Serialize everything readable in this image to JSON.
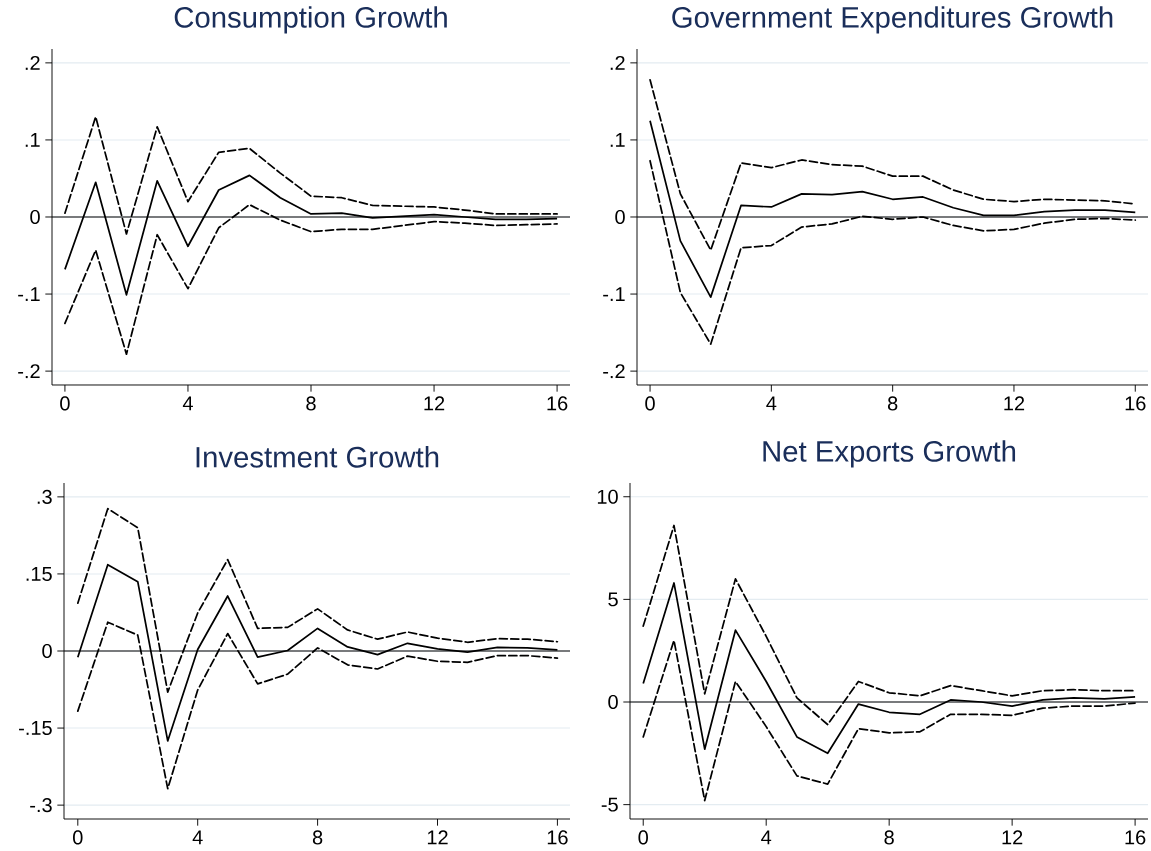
{
  "chart_data": [
    {
      "type": "line",
      "title": "Consumption Growth",
      "x": [
        0,
        1,
        2,
        3,
        4,
        5,
        6,
        7,
        8,
        9,
        10,
        11,
        12,
        13,
        14,
        15,
        16
      ],
      "xlim": [
        -0.42,
        16.42
      ],
      "ylim": [
        -0.218,
        0.218
      ],
      "xticks": [
        0,
        4,
        8,
        12,
        16
      ],
      "yticks": [
        {
          "value": -0.2,
          "label": "-.2"
        },
        {
          "value": -0.1,
          "label": "-.1"
        },
        0,
        {
          "value": 0.1,
          "label": ".1"
        },
        {
          "value": 0.2,
          "label": ".2"
        }
      ],
      "grid": "y",
      "ref_lines": [
        {
          "axis": "y",
          "value": 0,
          "color": "#000000"
        }
      ],
      "series": [
        {
          "color": "#000000",
          "line_style": "solid",
          "values": [
            -0.068,
            0.045,
            -0.101,
            0.047,
            -0.038,
            0.035,
            0.054,
            0.025,
            0.004,
            0.005,
            -0.001,
            0.001,
            0.003,
            0.0,
            -0.003,
            -0.003,
            -0.002
          ]
        },
        {
          "color": "#000000",
          "line_style": "dashed",
          "values": [
            0.005,
            0.13,
            -0.022,
            0.117,
            0.02,
            0.084,
            0.089,
            0.057,
            0.027,
            0.025,
            0.015,
            0.014,
            0.013,
            0.009,
            0.004,
            0.004,
            0.004
          ]
        },
        {
          "color": "#000000",
          "line_style": "dashed",
          "values": [
            -0.138,
            -0.043,
            -0.178,
            -0.023,
            -0.093,
            -0.014,
            0.016,
            -0.004,
            -0.019,
            -0.016,
            -0.016,
            -0.011,
            -0.006,
            -0.008,
            -0.011,
            -0.01,
            -0.009
          ]
        }
      ]
    },
    {
      "type": "line",
      "title": "Government Expenditures Growth",
      "x": [
        0,
        1,
        2,
        3,
        4,
        5,
        6,
        7,
        8,
        9,
        10,
        11,
        12,
        13,
        14,
        15,
        16
      ],
      "xlim": [
        -0.43,
        16.42
      ],
      "ylim": [
        -0.218,
        0.218
      ],
      "xticks": [
        0,
        4,
        8,
        12,
        16
      ],
      "yticks": [
        {
          "value": -0.2,
          "label": "-.2"
        },
        {
          "value": -0.1,
          "label": "-.1"
        },
        0,
        {
          "value": 0.1,
          "label": ".1"
        },
        {
          "value": 0.2,
          "label": ".2"
        }
      ],
      "grid": "y",
      "ref_lines": [
        {
          "axis": "y",
          "value": 0,
          "color": "#000000"
        }
      ],
      "series": [
        {
          "color": "#000000",
          "line_style": "solid",
          "values": [
            0.125,
            -0.031,
            -0.104,
            0.015,
            0.013,
            0.03,
            0.029,
            0.033,
            0.023,
            0.026,
            0.012,
            0.002,
            0.002,
            0.007,
            0.009,
            0.009,
            0.006
          ]
        },
        {
          "color": "#000000",
          "line_style": "dashed",
          "values": [
            0.178,
            0.03,
            -0.043,
            0.07,
            0.064,
            0.074,
            0.068,
            0.066,
            0.053,
            0.053,
            0.035,
            0.023,
            0.02,
            0.023,
            0.022,
            0.021,
            0.017
          ]
        },
        {
          "color": "#000000",
          "line_style": "dashed",
          "values": [
            0.073,
            -0.098,
            -0.165,
            -0.04,
            -0.037,
            -0.013,
            -0.009,
            0.001,
            -0.003,
            0.0,
            -0.011,
            -0.018,
            -0.016,
            -0.008,
            -0.003,
            -0.002,
            -0.004
          ]
        }
      ]
    },
    {
      "type": "line",
      "title": "Investment Growth",
      "x": [
        0,
        1,
        2,
        3,
        4,
        5,
        6,
        7,
        8,
        9,
        10,
        11,
        12,
        13,
        14,
        15,
        16
      ],
      "xlim": [
        -0.46,
        16.42
      ],
      "ylim": [
        -0.327,
        0.327
      ],
      "xticks": [
        0,
        4,
        8,
        12,
        16
      ],
      "yticks": [
        {
          "value": -0.3,
          "label": "-.3"
        },
        {
          "value": -0.15,
          "label": "-.15"
        },
        0,
        {
          "value": 0.15,
          "label": ".15"
        },
        {
          "value": 0.3,
          "label": ".3"
        }
      ],
      "grid": "y",
      "ref_lines": [
        {
          "axis": "y",
          "value": 0,
          "color": "#000000"
        }
      ],
      "series": [
        {
          "color": "#000000",
          "line_style": "solid",
          "values": [
            -0.012,
            0.168,
            0.135,
            -0.175,
            0.003,
            0.107,
            -0.012,
            0.001,
            0.044,
            0.008,
            -0.007,
            0.015,
            0.004,
            -0.002,
            0.007,
            0.006,
            0.002
          ]
        },
        {
          "color": "#000000",
          "line_style": "dashed",
          "values": [
            0.093,
            0.277,
            0.24,
            -0.08,
            0.074,
            0.178,
            0.044,
            0.046,
            0.082,
            0.041,
            0.023,
            0.037,
            0.025,
            0.017,
            0.024,
            0.023,
            0.018
          ]
        },
        {
          "color": "#000000",
          "line_style": "dashed",
          "values": [
            -0.117,
            0.056,
            0.031,
            -0.268,
            -0.076,
            0.034,
            -0.064,
            -0.045,
            0.006,
            -0.027,
            -0.035,
            -0.01,
            -0.02,
            -0.022,
            -0.009,
            -0.009,
            -0.014
          ]
        }
      ]
    },
    {
      "type": "line",
      "title": "Net Exports Growth",
      "x": [
        0,
        1,
        2,
        3,
        4,
        5,
        6,
        7,
        8,
        9,
        10,
        11,
        12,
        13,
        14,
        15,
        16
      ],
      "xlim": [
        -0.43,
        16.42
      ],
      "ylim": [
        -5.7,
        10.67
      ],
      "xticks": [
        0,
        4,
        8,
        12,
        16
      ],
      "yticks": [
        -5,
        0,
        5,
        10
      ],
      "grid": "y",
      "ref_lines": [
        {
          "axis": "y",
          "value": 0,
          "color": "#000000"
        }
      ],
      "series": [
        {
          "color": "#000000",
          "line_style": "solid",
          "values": [
            0.9,
            5.8,
            -2.3,
            3.5,
            1.0,
            -1.7,
            -2.5,
            -0.1,
            -0.5,
            -0.6,
            0.1,
            0.0,
            -0.2,
            0.1,
            0.2,
            0.15,
            0.25
          ]
        },
        {
          "color": "#000000",
          "line_style": "dashed",
          "values": [
            3.7,
            8.6,
            0.4,
            6.0,
            3.2,
            0.2,
            -1.1,
            1.0,
            0.45,
            0.3,
            0.8,
            0.55,
            0.3,
            0.55,
            0.6,
            0.55,
            0.55
          ]
        },
        {
          "color": "#000000",
          "line_style": "dashed",
          "values": [
            -1.7,
            3.0,
            -4.8,
            1.0,
            -1.2,
            -3.6,
            -4.0,
            -1.3,
            -1.5,
            -1.45,
            -0.6,
            -0.6,
            -0.65,
            -0.3,
            -0.2,
            -0.2,
            -0.05
          ]
        }
      ]
    }
  ]
}
